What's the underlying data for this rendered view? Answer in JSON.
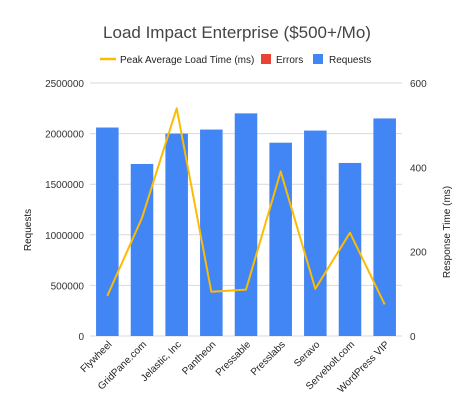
{
  "chart_data": {
    "type": "bar",
    "title": "Load Impact Enterprise ($500+/Mo)",
    "categories": [
      "Flywheel",
      "GridPane.com",
      "Jelastic, Inc",
      "Pantheon",
      "Pressable",
      "Presslabs",
      "Seravo",
      "Servebolt.com",
      "WordPress VIP"
    ],
    "series": [
      {
        "name": "Requests",
        "type": "bar",
        "axis": "left",
        "color": "#4285f4",
        "values": [
          2060000,
          1700000,
          2000000,
          2040000,
          2200000,
          1910000,
          2030000,
          1710000,
          2150000
        ]
      },
      {
        "name": "Errors",
        "type": "bar",
        "axis": "left",
        "color": "#ea4335",
        "values": [
          0,
          0,
          0,
          0,
          0,
          0,
          0,
          0,
          0
        ]
      },
      {
        "name": "Peak Average Load Time (ms)",
        "type": "line",
        "axis": "right",
        "color": "#fbbc04",
        "values": [
          95,
          280,
          540,
          105,
          110,
          390,
          112,
          245,
          75
        ]
      }
    ],
    "ylabel": "Requests",
    "ylim": [
      0,
      2500000
    ],
    "yticks": [
      "0",
      "500000",
      "1000000",
      "1500000",
      "2000000",
      "2500000"
    ],
    "y2label": "Response Time (ms)",
    "y2lim": [
      0,
      600
    ],
    "y2ticks": [
      "0",
      "200",
      "400",
      "600"
    ],
    "legend": {
      "position": "top",
      "entries": [
        "Peak Average Load Time (ms)",
        "Errors",
        "Requests"
      ]
    },
    "grid": true
  }
}
